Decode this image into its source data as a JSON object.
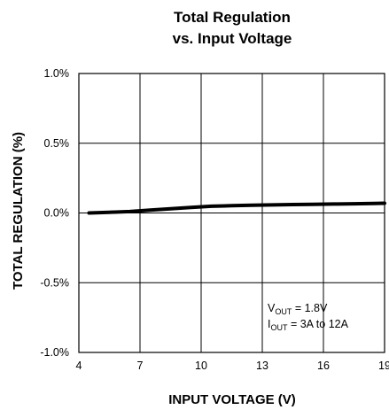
{
  "chart_data": {
    "type": "line",
    "title": [
      "Total Regulation",
      "vs. Input Voltage"
    ],
    "xlabel": "INPUT VOLTAGE (V)",
    "ylabel": "TOTAL REGULATION (%)",
    "xlim": [
      4,
      19
    ],
    "ylim": [
      -1.0,
      1.0
    ],
    "x_ticks": [
      4,
      7,
      10,
      13,
      16,
      19
    ],
    "x_tick_labels": [
      "4",
      "7",
      "10",
      "13",
      "16",
      "19"
    ],
    "y_ticks": [
      1.0,
      0.5,
      0.0,
      -0.5,
      -1.0
    ],
    "y_tick_labels": [
      "1.0%",
      "0.5%",
      "0.0%",
      "-0.5%",
      "-1.0%"
    ],
    "grid": true,
    "series": [
      {
        "x": [
          4.5,
          5.5,
          6.5,
          7.5,
          8.5,
          9.5,
          10.5,
          11.5,
          12.5,
          13.5,
          14.5,
          15.5,
          16.5,
          17.5,
          18.5,
          19
        ],
        "values": [
          0.0,
          0.005,
          0.01,
          0.02,
          0.03,
          0.04,
          0.048,
          0.052,
          0.056,
          0.058,
          0.06,
          0.062,
          0.064,
          0.066,
          0.068,
          0.07
        ]
      }
    ],
    "annotation": {
      "vout_main": "V",
      "vout_sub": "OUT",
      "vout_rest": " = 1.8V",
      "iout_main": "I",
      "iout_sub": "OUT",
      "iout_rest": " = 3A to 12A"
    }
  }
}
